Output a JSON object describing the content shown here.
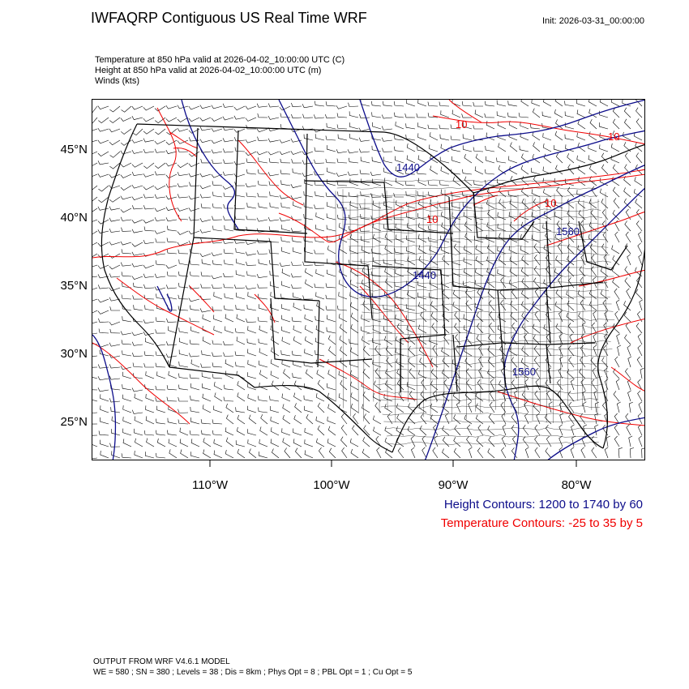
{
  "header": {
    "title": "IWFAQRP Contiguous US Real Time WRF",
    "init": "Init: 2026-03-31_00:00:00"
  },
  "subtitle_lines": [
    "Temperature at 850 hPa valid at 2026-04-02_10:00:00 UTC   (C)",
    "Height at 850 hPa valid at 2026-04-02_10:00:00 UTC   (m)",
    "Winds   (kts)"
  ],
  "map": {
    "lat_labels": [
      "45°N",
      "40°N",
      "35°N",
      "30°N",
      "25°N"
    ],
    "lon_labels": [
      "110°W",
      "100°W",
      "90°W",
      "80°W"
    ],
    "height_contour_labels": [
      "1440",
      "1440",
      "1560",
      "1560"
    ],
    "temperature_contour_labels": [
      "10",
      "10",
      "10",
      "10"
    ],
    "colors": {
      "height": "#0c0c8a",
      "temperature": "#f00000",
      "boundaries": "#000000",
      "barbs": "#000000"
    }
  },
  "legend": {
    "height": "Height Contours: 1200 to 1740 by 60",
    "temperature": "Temperature Contours: -25 to 35 by 5"
  },
  "footer": {
    "line1": "OUTPUT FROM WRF V4.6.1 MODEL",
    "line2": "WE = 580 ; SN = 380 ; Levels = 38 ; Dis = 8km ; Phys Opt = 8 ; PBL Opt = 1 ; Cu Opt = 5"
  }
}
